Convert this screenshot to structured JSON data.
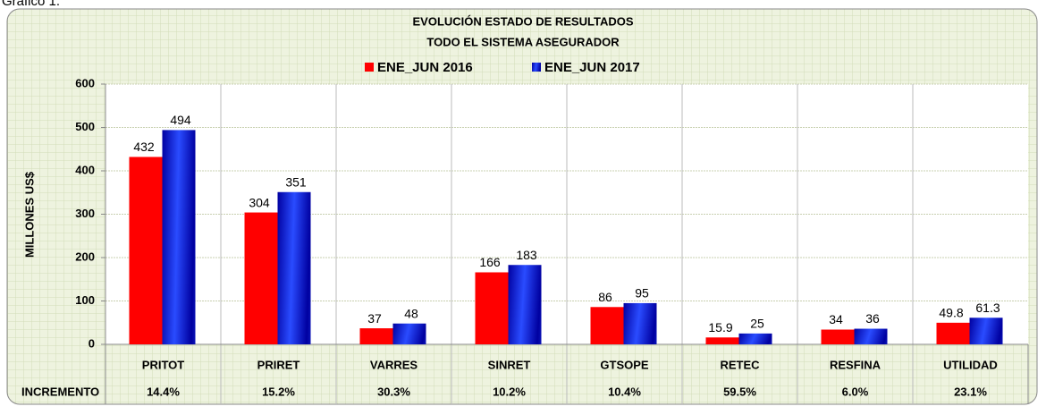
{
  "page_label": "Gráfico 1.",
  "chart_data": {
    "type": "bar",
    "title": "EVOLUCIÓN  ESTADO DE RESULTADOS",
    "subtitle": "TODO EL SISTEMA ASEGURADOR",
    "y_label": "MILLONES US$",
    "categories": [
      "PRITOT",
      "PRIRET",
      "VARRES",
      "SINRET",
      "GTSOPE",
      "RETEC",
      "RESFINA",
      "UTILIDAD"
    ],
    "series": [
      {
        "name": "ENE_JUN 2016",
        "color": "#ff0000",
        "values": [
          432,
          304,
          37,
          166,
          86,
          15.9,
          34,
          49.8
        ]
      },
      {
        "name": "ENE_JUN 2017",
        "color": "#0a1fc8",
        "values": [
          494,
          351,
          48,
          183,
          95,
          25,
          36,
          61.3
        ]
      }
    ],
    "ylim": [
      0,
      600
    ],
    "yticks": [
      0,
      100,
      200,
      300,
      400,
      500,
      600
    ],
    "grid": true,
    "legend": "top",
    "increment_label": "INCREMENTO",
    "increments": [
      "14.4%",
      "15.2%",
      "30.3%",
      "10.2%",
      "10.4%",
      "59.5%",
      "6.0%",
      "23.1%"
    ]
  }
}
